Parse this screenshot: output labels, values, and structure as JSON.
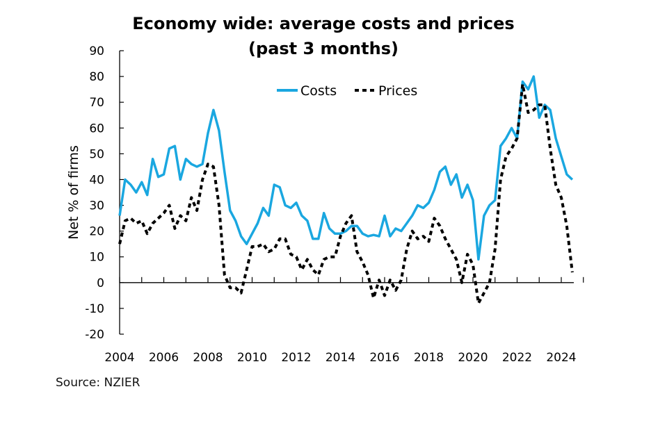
{
  "chart_data": {
    "type": "line",
    "title": "Economy wide: average costs and prices",
    "subtitle": "(past 3 months)",
    "ylabel": "Net % of firms",
    "xlabel": "",
    "ylim": [
      -20,
      90
    ],
    "yticks": [
      -20,
      -10,
      0,
      10,
      20,
      30,
      40,
      50,
      60,
      70,
      80,
      90
    ],
    "xticks": [
      2004,
      2006,
      2008,
      2010,
      2012,
      2014,
      2016,
      2018,
      2020,
      2022,
      2024
    ],
    "x_start": 2004,
    "x_step": 0.25,
    "legend_position": "top-center",
    "grid": false,
    "series": [
      {
        "name": "Costs",
        "color": "#1aa7e0",
        "style": "solid",
        "values": [
          26,
          40,
          38,
          35,
          39,
          34,
          48,
          41,
          42,
          52,
          53,
          40,
          48,
          46,
          45,
          46,
          58,
          67,
          59,
          43,
          28,
          24,
          18,
          15,
          19,
          23,
          29,
          26,
          38,
          37,
          30,
          29,
          31,
          26,
          24,
          17,
          17,
          27,
          21,
          19,
          19,
          20,
          22,
          22,
          19,
          18,
          18.5,
          18,
          26,
          18,
          21,
          20,
          23,
          26,
          30,
          29,
          31,
          36,
          43,
          45,
          38,
          42,
          33,
          38,
          32,
          9,
          26,
          30,
          32,
          53,
          56,
          60,
          56,
          78,
          75,
          80,
          64,
          69,
          67,
          56,
          49,
          42,
          40
        ]
      },
      {
        "name": "Prices",
        "color": "#000000",
        "style": "dashed",
        "values": [
          15,
          24,
          25,
          23,
          24,
          19,
          23,
          25,
          27,
          30,
          21,
          26,
          24,
          33,
          28,
          40,
          46,
          45,
          30,
          3,
          -2,
          -2,
          -4,
          5,
          14,
          14,
          15,
          12,
          13,
          17,
          17,
          11,
          10,
          5,
          9,
          5,
          3,
          9,
          10,
          10,
          18,
          23,
          26,
          12,
          8,
          3,
          -6,
          1,
          -5,
          1,
          -3,
          1,
          13,
          20,
          17,
          18,
          16,
          25,
          22,
          17,
          13,
          9,
          0,
          11,
          7,
          -8,
          -4,
          0,
          13,
          40,
          49,
          52,
          56,
          77,
          66,
          67,
          69,
          69,
          52,
          38,
          33,
          22,
          4
        ]
      }
    ]
  },
  "source": "Source: NZIER"
}
